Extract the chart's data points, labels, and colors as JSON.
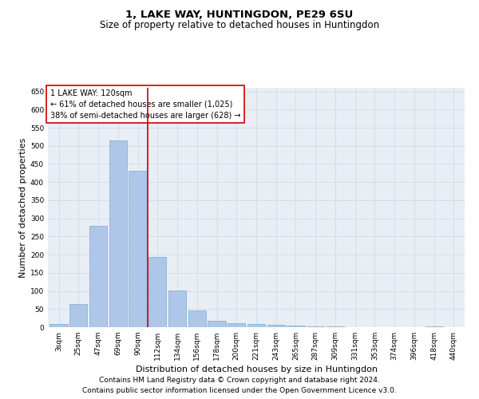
{
  "title": "1, LAKE WAY, HUNTINGDON, PE29 6SU",
  "subtitle": "Size of property relative to detached houses in Huntingdon",
  "xlabel": "Distribution of detached houses by size in Huntingdon",
  "ylabel": "Number of detached properties",
  "categories": [
    "3sqm",
    "25sqm",
    "47sqm",
    "69sqm",
    "90sqm",
    "112sqm",
    "134sqm",
    "156sqm",
    "178sqm",
    "200sqm",
    "221sqm",
    "243sqm",
    "265sqm",
    "287sqm",
    "309sqm",
    "331sqm",
    "353sqm",
    "374sqm",
    "396sqm",
    "418sqm",
    "440sqm"
  ],
  "values": [
    8,
    63,
    280,
    515,
    432,
    193,
    102,
    46,
    17,
    10,
    8,
    6,
    4,
    2,
    2,
    1,
    0,
    0,
    0,
    3,
    0
  ],
  "bar_color": "#aec6e8",
  "bar_edge_color": "#7aadd4",
  "vline_x": 4.5,
  "vline_color": "#cc0000",
  "annotation_title": "1 LAKE WAY: 120sqm",
  "annotation_line1": "← 61% of detached houses are smaller (1,025)",
  "annotation_line2": "38% of semi-detached houses are larger (628) →",
  "annotation_box_color": "#ffffff",
  "annotation_box_edge": "#cc0000",
  "ylim": [
    0,
    660
  ],
  "yticks": [
    0,
    50,
    100,
    150,
    200,
    250,
    300,
    350,
    400,
    450,
    500,
    550,
    600,
    650
  ],
  "grid_color": "#d0dce8",
  "bg_color": "#e8eef4",
  "footer1": "Contains HM Land Registry data © Crown copyright and database right 2024.",
  "footer2": "Contains public sector information licensed under the Open Government Licence v3.0.",
  "title_fontsize": 9.5,
  "subtitle_fontsize": 8.5,
  "tick_fontsize": 6.5,
  "xlabel_fontsize": 8,
  "ylabel_fontsize": 8,
  "annotation_fontsize": 7,
  "footer_fontsize": 6.5
}
